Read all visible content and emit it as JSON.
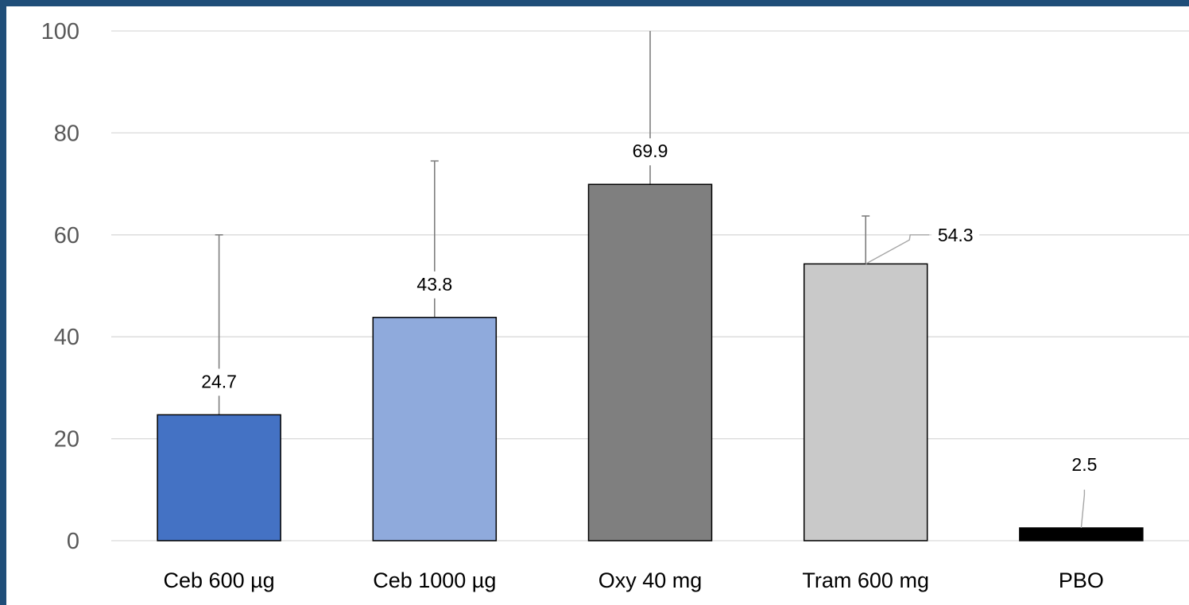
{
  "chart_data": {
    "type": "bar",
    "categories": [
      "Ceb 600 µg",
      "Ceb 1000 µg",
      "Oxy 40 mg",
      "Tram 600 mg",
      "PBO"
    ],
    "values": [
      24.7,
      43.8,
      69.9,
      54.3,
      2.5
    ],
    "value_labels": [
      "24.7",
      "43.8",
      "69.9",
      "54.3",
      "2.5"
    ],
    "error_upper": [
      60.0,
      74.5,
      100.0,
      63.7,
      null
    ],
    "colors": [
      "#4472c4",
      "#8faadc",
      "#7f7f7f",
      "#c9c9c9",
      "#000000"
    ],
    "ylim": [
      0,
      100
    ],
    "yticks": [
      0,
      20,
      40,
      60,
      80,
      100
    ],
    "ytick_labels": [
      "0",
      "20",
      "40",
      "60",
      "80",
      "100"
    ],
    "grid": true,
    "title": "",
    "xlabel": "",
    "ylabel": ""
  }
}
